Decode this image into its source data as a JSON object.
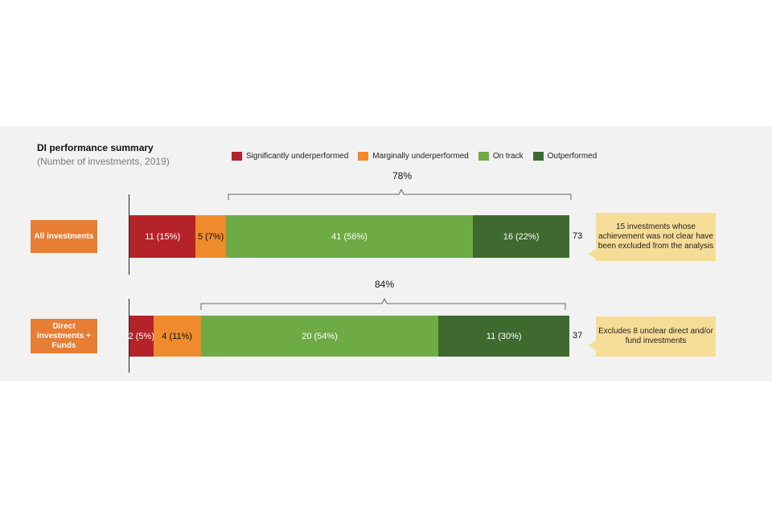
{
  "chart_data": {
    "type": "bar",
    "orientation": "horizontal-stacked",
    "title": "DI performance summary",
    "subtitle": "(Number of investments, 2019)",
    "categories": [
      "All investments",
      "Direct investments + Funds"
    ],
    "series": [
      {
        "name": "Significantly underperformed",
        "color": "#b5232a",
        "values": [
          11,
          2
        ],
        "labels": [
          "11 (15%)",
          "2 (5%)"
        ]
      },
      {
        "name": "Marginally underperformed",
        "color": "#ef8b2c",
        "values": [
          5,
          4
        ],
        "labels": [
          "5 (7%)",
          "4 (11%)"
        ]
      },
      {
        "name": "On track",
        "color": "#6eab45",
        "values": [
          41,
          20
        ],
        "labels": [
          "41 (56%)",
          "20 (54%)"
        ]
      },
      {
        "name": "Outperformed",
        "color": "#3e6a2f",
        "values": [
          16,
          11
        ],
        "labels": [
          "16 (22%)",
          "11 (30%)"
        ]
      }
    ],
    "totals": [
      "73",
      "37"
    ],
    "bracket_labels": [
      "78%",
      "84%"
    ],
    "notes": [
      "15 investments whose achievement was not clear have been excluded from the analysis",
      "Excludes 8 unclear direct and/or fund investments"
    ]
  }
}
